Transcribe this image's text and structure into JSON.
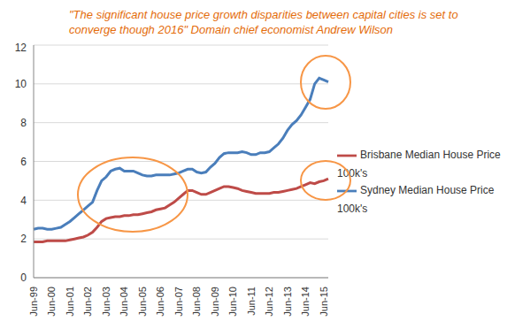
{
  "chart_data": {
    "type": "line",
    "title": "\"The significant house price growth disparities between capital cities is set to converge though 2016\" Domain chief economist Andrew Wilson",
    "categories": [
      "Jun-99",
      null,
      null,
      null,
      "Jun-00",
      null,
      null,
      null,
      "Jun-01",
      null,
      null,
      null,
      "Jun-02",
      null,
      null,
      null,
      "Jun-03",
      null,
      null,
      null,
      "Jun-04",
      null,
      null,
      null,
      "Jun-05",
      null,
      null,
      null,
      "Jun-06",
      null,
      null,
      null,
      "Jun-07",
      null,
      null,
      null,
      "Jun-08",
      null,
      null,
      null,
      "Jun-09",
      null,
      null,
      null,
      "Jun-10",
      null,
      null,
      null,
      "Jun-11",
      null,
      null,
      null,
      "Jun-12",
      null,
      null,
      null,
      "Jun-13",
      null,
      null,
      null,
      "Jun-14",
      null,
      null,
      null,
      "Jun-15",
      null
    ],
    "series": [
      {
        "name": "Sydney Median House Price 100k's",
        "color": "#4a7ebb",
        "values": [
          2.5,
          2.55,
          2.55,
          2.5,
          2.5,
          2.55,
          2.6,
          2.75,
          2.9,
          3.1,
          3.3,
          3.5,
          3.7,
          3.9,
          4.5,
          5.0,
          5.2,
          5.5,
          5.6,
          5.65,
          5.5,
          5.5,
          5.5,
          5.4,
          5.3,
          5.25,
          5.25,
          5.3,
          5.3,
          5.3,
          5.3,
          5.35,
          5.4,
          5.5,
          5.6,
          5.6,
          5.45,
          5.4,
          5.45,
          5.7,
          5.9,
          6.2,
          6.4,
          6.45,
          6.45,
          6.45,
          6.5,
          6.45,
          6.35,
          6.35,
          6.45,
          6.45,
          6.5,
          6.7,
          6.9,
          7.2,
          7.6,
          7.9,
          8.1,
          8.4,
          8.8,
          9.2,
          10.0,
          10.3,
          10.2,
          10.1
        ]
      },
      {
        "name": "Brisbane Median House Price 100k's",
        "color": "#be4b48",
        "values": [
          1.85,
          1.85,
          1.85,
          1.9,
          1.9,
          1.9,
          1.9,
          1.9,
          1.95,
          2.0,
          2.05,
          2.1,
          2.2,
          2.35,
          2.6,
          2.9,
          3.05,
          3.1,
          3.15,
          3.15,
          3.2,
          3.2,
          3.25,
          3.25,
          3.3,
          3.35,
          3.4,
          3.5,
          3.55,
          3.6,
          3.75,
          3.9,
          4.1,
          4.3,
          4.5,
          4.5,
          4.4,
          4.3,
          4.3,
          4.4,
          4.5,
          4.6,
          4.7,
          4.7,
          4.65,
          4.6,
          4.5,
          4.45,
          4.4,
          4.35,
          4.35,
          4.35,
          4.35,
          4.4,
          4.4,
          4.45,
          4.5,
          4.55,
          4.6,
          4.7,
          4.8,
          4.9,
          4.85,
          4.95,
          5.0,
          5.1
        ]
      }
    ],
    "ylim": [
      0,
      12
    ],
    "yticks": [
      0,
      2,
      4,
      6,
      8,
      10,
      12
    ],
    "grid": true,
    "legend": "right"
  }
}
